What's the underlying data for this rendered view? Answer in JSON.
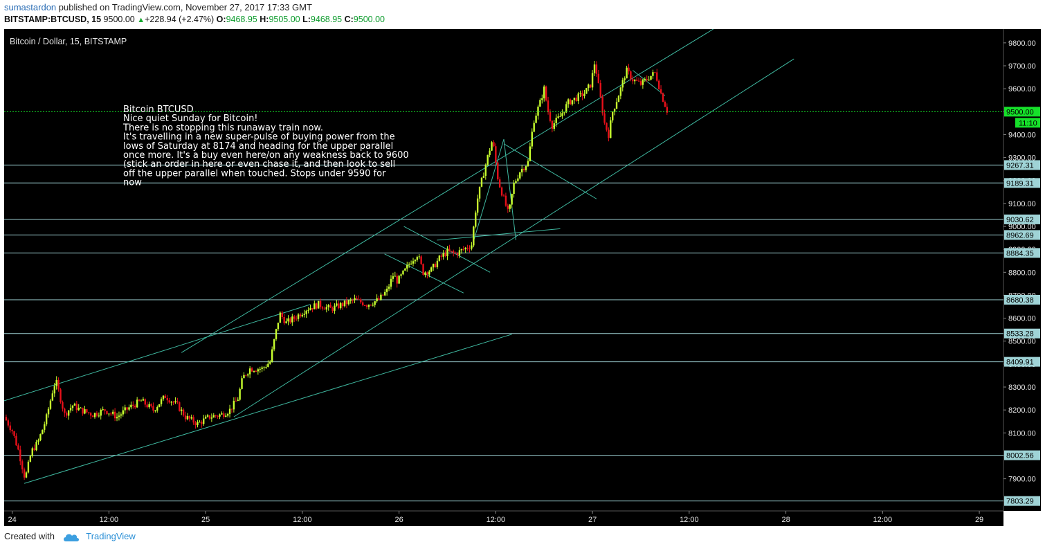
{
  "header": {
    "author": "sumastardon",
    "published_text": "published on TradingView.com, November 27, 2017 17:33 GMT",
    "symbol": "BITSTAMP:BTCUSD, 15",
    "last": "9500.00",
    "change": "+228.94 (+2.47%)",
    "o_label": "O:",
    "o_value": "9468.95",
    "h_label": "H:",
    "h_value": "9505.00",
    "l_label": "L:",
    "l_value": "9468.95",
    "c_label": "C:",
    "c_value": "9500.00"
  },
  "footer": {
    "created_with": "Created with",
    "brand": "TradingView",
    "logo_icon": "tradingview-cloud-icon"
  },
  "chart_data": {
    "type": "candlestick",
    "title": "Bitcoin / Dollar, 15, BITSTAMP",
    "colors": {
      "background": "#000000",
      "up": "#c8ff2e",
      "down": "#e8101a",
      "trendline": "#3fb8a0",
      "hline": "#9fd3d6",
      "last_price": "#16e02a"
    },
    "ylim": [
      7760,
      9860
    ],
    "y_ticks": [
      7900,
      8000,
      8100,
      8200,
      8300,
      8400,
      8500,
      8600,
      8700,
      8800,
      8900,
      9000,
      9100,
      9200,
      9300,
      9400,
      9500,
      9600,
      9700,
      9800
    ],
    "y_tick_labels": [
      "7900.00",
      "8000.00",
      "8100.00",
      "8200.00",
      "8300.00",
      "8400.00",
      "8500.00",
      "8600.00",
      "8700.00",
      "8800.00",
      "8900.00",
      "9000.00",
      "9100.00",
      "9200.00",
      "9300.00",
      "9400.00",
      "9500.00",
      "9600.00",
      "9700.00",
      "9800.00"
    ],
    "x_ticks": [
      {
        "t": 0,
        "label": "24"
      },
      {
        "t": 12,
        "label": "12:00"
      },
      {
        "t": 24,
        "label": "25"
      },
      {
        "t": 36,
        "label": "12:00"
      },
      {
        "t": 48,
        "label": "26"
      },
      {
        "t": 60,
        "label": "12:00"
      },
      {
        "t": 72,
        "label": "27"
      },
      {
        "t": 84,
        "label": "12:00"
      },
      {
        "t": 96,
        "label": "28"
      },
      {
        "t": 108,
        "label": "12:00"
      },
      {
        "t": 120,
        "label": "29"
      }
    ],
    "xlim": [
      -1,
      123
    ],
    "horizontal_levels": [
      {
        "price": 9267.31,
        "label": "9267.31"
      },
      {
        "price": 9189.31,
        "label": "9189.31"
      },
      {
        "price": 9030.62,
        "label": "9030.62"
      },
      {
        "price": 8962.69,
        "label": "8962.69"
      },
      {
        "price": 8884.35,
        "label": "8884.35"
      },
      {
        "price": 8680.38,
        "label": "8680.38"
      },
      {
        "price": 8533.28,
        "label": "8533.28"
      },
      {
        "price": 8409.91,
        "label": "8409.91"
      },
      {
        "price": 8002.56,
        "label": "8002.56"
      },
      {
        "price": 7803.29,
        "label": "7803.29"
      }
    ],
    "last_price": {
      "price": 9500,
      "label": "9500.00",
      "countdown": "11:10"
    },
    "price_path": [
      [
        -1,
        8170
      ],
      [
        0,
        8110
      ],
      [
        0.8,
        8020
      ],
      [
        1.6,
        7900
      ],
      [
        2.4,
        8020
      ],
      [
        3.2,
        8060
      ],
      [
        4.2,
        8160
      ],
      [
        5,
        8280
      ],
      [
        5.4,
        8330
      ],
      [
        6.5,
        8180
      ],
      [
        7.5,
        8220
      ],
      [
        8.5,
        8200
      ],
      [
        10,
        8180
      ],
      [
        11.5,
        8200
      ],
      [
        13,
        8170
      ],
      [
        14.5,
        8210
      ],
      [
        16,
        8240
      ],
      [
        17.5,
        8200
      ],
      [
        19,
        8260
      ],
      [
        20.5,
        8220
      ],
      [
        21.5,
        8170
      ],
      [
        23,
        8140
      ],
      [
        24.5,
        8170
      ],
      [
        26,
        8180
      ],
      [
        27,
        8200
      ],
      [
        28,
        8250
      ],
      [
        28.6,
        8340
      ],
      [
        29.5,
        8380
      ],
      [
        31,
        8380
      ],
      [
        32,
        8410
      ],
      [
        32.6,
        8520
      ],
      [
        33.2,
        8620
      ],
      [
        34,
        8580
      ],
      [
        35,
        8600
      ],
      [
        36.5,
        8640
      ],
      [
        38,
        8660
      ],
      [
        39.5,
        8640
      ],
      [
        41,
        8660
      ],
      [
        42.5,
        8680
      ],
      [
        44,
        8660
      ],
      [
        45.5,
        8680
      ],
      [
        46.5,
        8720
      ],
      [
        47.3,
        8790
      ],
      [
        47.8,
        8760
      ],
      [
        48.8,
        8810
      ],
      [
        49.5,
        8850
      ],
      [
        50.3,
        8880
      ],
      [
        51,
        8800
      ],
      [
        52,
        8810
      ],
      [
        53,
        8860
      ],
      [
        54,
        8890
      ],
      [
        55,
        8880
      ],
      [
        56,
        8900
      ],
      [
        57,
        8920
      ],
      [
        57.6,
        9100
      ],
      [
        58.6,
        9250
      ],
      [
        59.2,
        9330
      ],
      [
        59.6,
        9380
      ],
      [
        60.3,
        9200
      ],
      [
        61,
        9120
      ],
      [
        61.6,
        9050
      ],
      [
        62.2,
        9180
      ],
      [
        63,
        9240
      ],
      [
        64,
        9280
      ],
      [
        64.7,
        9460
      ],
      [
        65.5,
        9540
      ],
      [
        66,
        9600
      ],
      [
        66.5,
        9500
      ],
      [
        67,
        9440
      ],
      [
        68,
        9480
      ],
      [
        69,
        9540
      ],
      [
        70,
        9560
      ],
      [
        71,
        9580
      ],
      [
        71.8,
        9620
      ],
      [
        72.3,
        9720
      ],
      [
        72.8,
        9600
      ],
      [
        73.5,
        9450
      ],
      [
        74,
        9400
      ],
      [
        74.5,
        9500
      ],
      [
        75.5,
        9600
      ],
      [
        76.2,
        9680
      ],
      [
        77,
        9640
      ],
      [
        78,
        9620
      ],
      [
        79,
        9650
      ],
      [
        79.8,
        9670
      ],
      [
        80.5,
        9580
      ],
      [
        81.3,
        9500
      ]
    ],
    "trendlines": [
      {
        "from": [
          -1,
          8240
        ],
        "to": [
          37,
          8660
        ]
      },
      {
        "from": [
          21,
          8450
        ],
        "to": [
          87,
          9860
        ]
      },
      {
        "from": [
          1.5,
          7880
        ],
        "to": [
          62,
          8530
        ]
      },
      {
        "from": [
          27.5,
          8170
        ],
        "to": [
          97,
          9730
        ]
      },
      {
        "from": [
          52.7,
          8940
        ],
        "to": [
          68,
          8990
        ]
      },
      {
        "from": [
          61,
          9360
        ],
        "to": [
          72.5,
          9120
        ]
      },
      {
        "from": [
          48.6,
          9000
        ],
        "to": [
          59.3,
          8800
        ]
      },
      {
        "from": [
          46.2,
          8880
        ],
        "to": [
          56,
          8710
        ]
      },
      {
        "from": [
          57.2,
          8930
        ],
        "to": [
          61,
          9380
        ]
      },
      {
        "from": [
          61,
          9380
        ],
        "to": [
          62.5,
          8940
        ]
      },
      {
        "from": [
          77,
          9680
        ],
        "to": [
          81,
          9570
        ]
      }
    ],
    "annotation": {
      "lines": [
        "Bitcoin BTCUSD",
        "Nice quiet Sunday for Bitcoin!",
        "There is no stopping this runaway train now.",
        "It's travelling in a new super-pulse of buying power from the",
        "lows of Saturday at 8174 and heading for the upper parallel",
        "once more. It's a buy even here/on any weakness back to 9600",
        "(stick an order in here or even chase it, and then look to sell",
        "off the upper parallel when touched. Stops under 9590 for",
        "now"
      ]
    },
    "grid": false,
    "legend": "none"
  }
}
